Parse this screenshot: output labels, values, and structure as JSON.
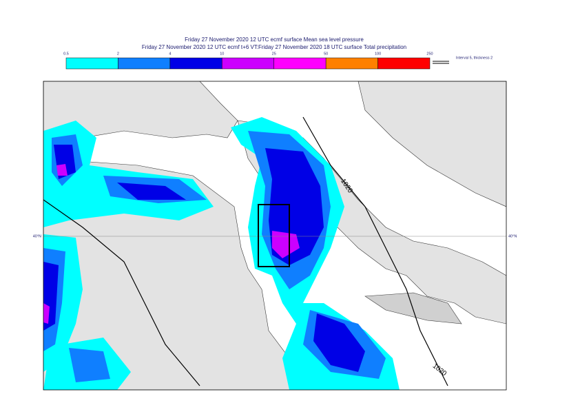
{
  "header": {
    "lines": [
      "Friday 27 November 2020 12 UTC ecmf surface  Mean sea level pressure",
      "Friday 27 November 2020 12 UTC ecmf t+6 VT:Friday 27 November 2020 18 UTC surface  Total precipitation"
    ]
  },
  "legend": {
    "thresholds": [
      0.5,
      2,
      4,
      10,
      25,
      50,
      100,
      250
    ],
    "colors": [
      "#00ffff",
      "#0f7fff",
      "#0000e6",
      "#cc00ff",
      "#ff00ff",
      "#ff8000",
      "#ff0000"
    ],
    "note": "Interval 5, thickness 2"
  },
  "map": {
    "lat_labels": [
      "40°N",
      "40°N"
    ],
    "contour_labels": [
      "1020",
      "1020"
    ]
  }
}
